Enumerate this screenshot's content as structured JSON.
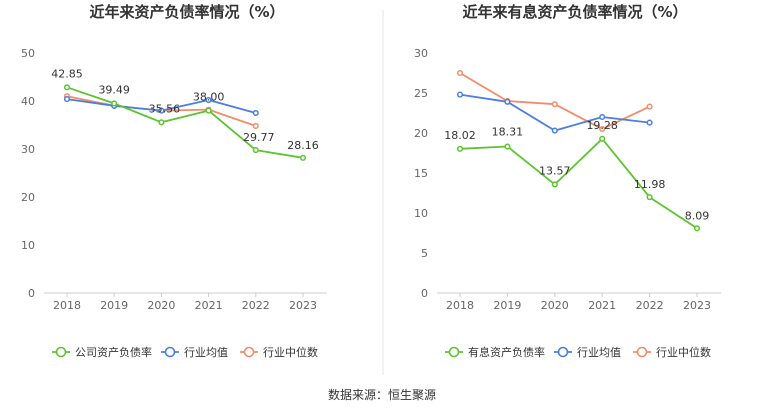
{
  "chart_data": [
    {
      "type": "line",
      "title": "近年来资产负债率情况（%）",
      "categories": [
        "2018",
        "2019",
        "2020",
        "2021",
        "2022",
        "2023"
      ],
      "ylim": [
        0,
        50
      ],
      "yticks": [
        "0",
        "10",
        "20",
        "30",
        "40",
        "50"
      ],
      "grid": false,
      "legend_position": "bottom",
      "series": [
        {
          "name": "公司资产负债率",
          "color": "#5cc42f",
          "values": [
            42.85,
            39.49,
            35.56,
            38.0,
            29.77,
            28.16
          ],
          "labels": [
            "42.85",
            "39.49",
            "35.56",
            "38.00",
            "29.77",
            "28.16"
          ]
        },
        {
          "name": "行业均值",
          "color": "#4a7ee0",
          "values": [
            40.4,
            39.0,
            38.0,
            40.2,
            37.5,
            null
          ]
        },
        {
          "name": "行业中位数",
          "color": "#f28c6b",
          "values": [
            41.0,
            39.0,
            38.0,
            38.2,
            34.8,
            null
          ]
        }
      ]
    },
    {
      "type": "line",
      "title": "近年来有息资产负债率情况（%）",
      "categories": [
        "2018",
        "2019",
        "2020",
        "2021",
        "2022",
        "2023"
      ],
      "ylim": [
        0,
        30
      ],
      "yticks": [
        "0",
        "5",
        "10",
        "15",
        "20",
        "25",
        "30"
      ],
      "grid": false,
      "legend_position": "bottom",
      "series": [
        {
          "name": "有息资产负债率",
          "color": "#5cc42f",
          "values": [
            18.02,
            18.31,
            13.57,
            19.28,
            11.98,
            8.09
          ],
          "labels": [
            "18.02",
            "18.31",
            "13.57",
            "19.28",
            "11.98",
            "8.09"
          ]
        },
        {
          "name": "行业均值",
          "color": "#4a7ee0",
          "values": [
            24.8,
            23.9,
            20.3,
            22.0,
            21.3,
            null
          ]
        },
        {
          "name": "行业中位数",
          "color": "#f28c6b",
          "values": [
            27.5,
            24.0,
            23.6,
            20.5,
            23.3,
            null
          ]
        }
      ]
    }
  ],
  "footer": {
    "source": "数据来源：恒生聚源"
  },
  "colors": {
    "divider": "#e6e6e6",
    "axis": "#cccccc"
  }
}
